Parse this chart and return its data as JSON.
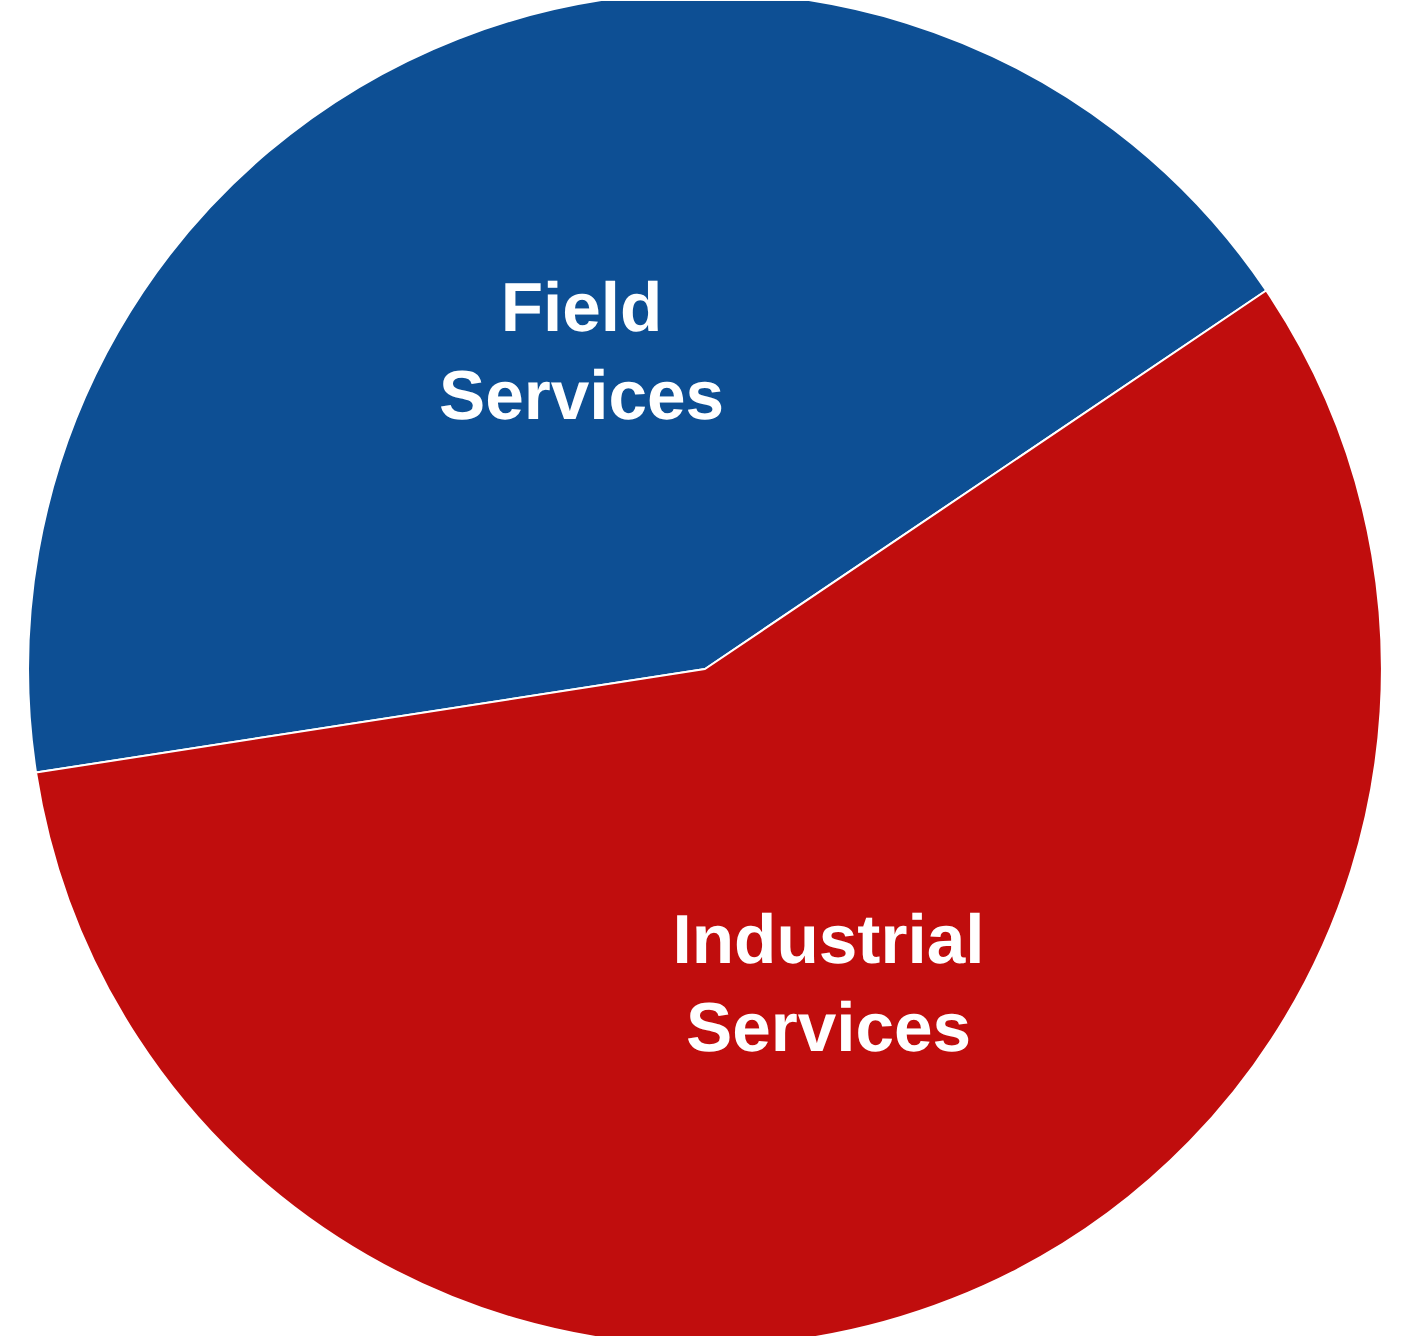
{
  "chart_data": {
    "type": "pie",
    "categories": [
      "Field Services",
      "Industrial Services"
    ],
    "values": [
      43,
      57
    ],
    "colors": [
      "#0d4f94",
      "#c00d0d"
    ]
  }
}
